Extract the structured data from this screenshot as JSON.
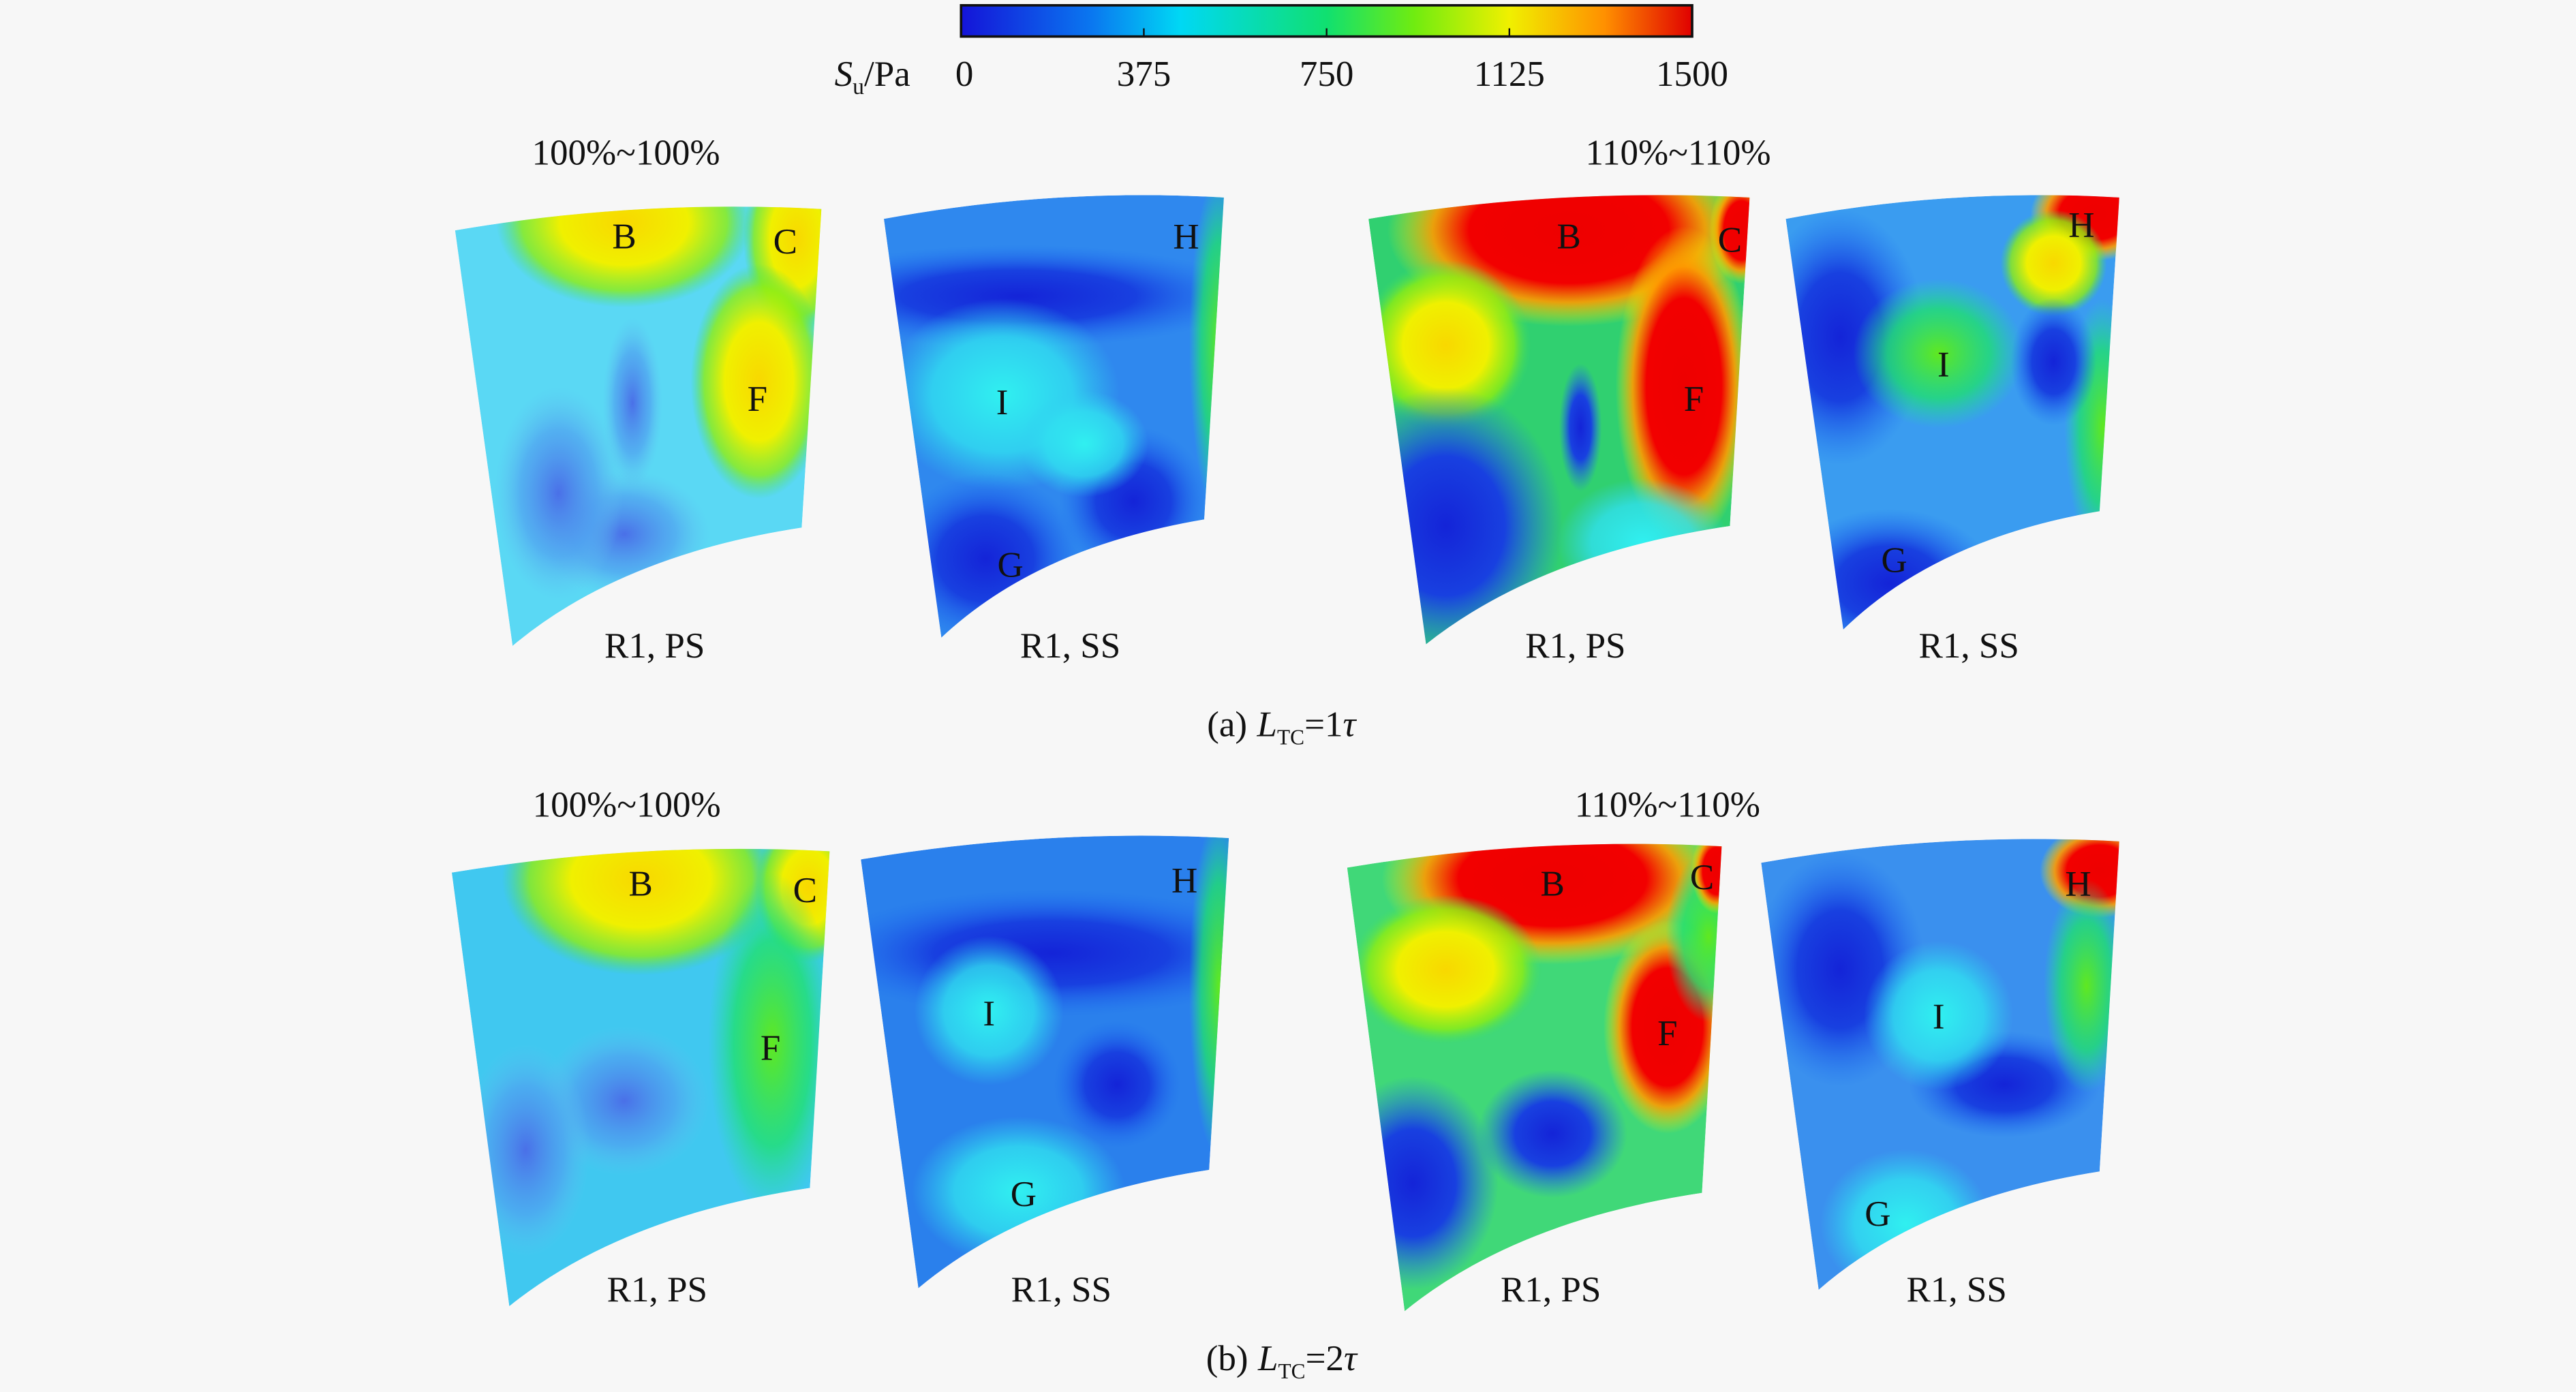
{
  "colorbar": {
    "symbol": "S",
    "symbol_sub": "u",
    "unit": "/Pa",
    "lim": [
      0,
      1500
    ],
    "ticks": [
      0,
      375,
      750,
      1125,
      1500
    ]
  },
  "rows": [
    {
      "caption": {
        "label": "(a)",
        "var": "L",
        "sub": "TC",
        "eq": "=1",
        "tau": "τ"
      },
      "groups": [
        {
          "title": "100%~100%",
          "panels": [
            {
              "label": "R1, PS",
              "points": [
                "B",
                "C",
                "F"
              ]
            },
            {
              "label": "R1, SS",
              "points": [
                "H",
                "I",
                "G"
              ]
            }
          ]
        },
        {
          "title": "110%~110%",
          "panels": [
            {
              "label": "R1, PS",
              "points": [
                "B",
                "C",
                "F"
              ]
            },
            {
              "label": "R1, SS",
              "points": [
                "H",
                "I",
                "G"
              ]
            }
          ]
        }
      ]
    },
    {
      "caption": {
        "label": "(b)",
        "var": "L",
        "sub": "TC",
        "eq": "=2",
        "tau": "τ"
      },
      "groups": [
        {
          "title": "100%~100%",
          "panels": [
            {
              "label": "R1, PS",
              "points": [
                "B",
                "C",
                "F"
              ]
            },
            {
              "label": "R1, SS",
              "points": [
                "H",
                "I",
                "G"
              ]
            }
          ]
        },
        {
          "title": "110%~110%",
          "panels": [
            {
              "label": "R1, PS",
              "points": [
                "B",
                "C",
                "F"
              ]
            },
            {
              "label": "R1, SS",
              "points": [
                "H",
                "I",
                "G"
              ]
            }
          ]
        }
      ]
    }
  ]
}
